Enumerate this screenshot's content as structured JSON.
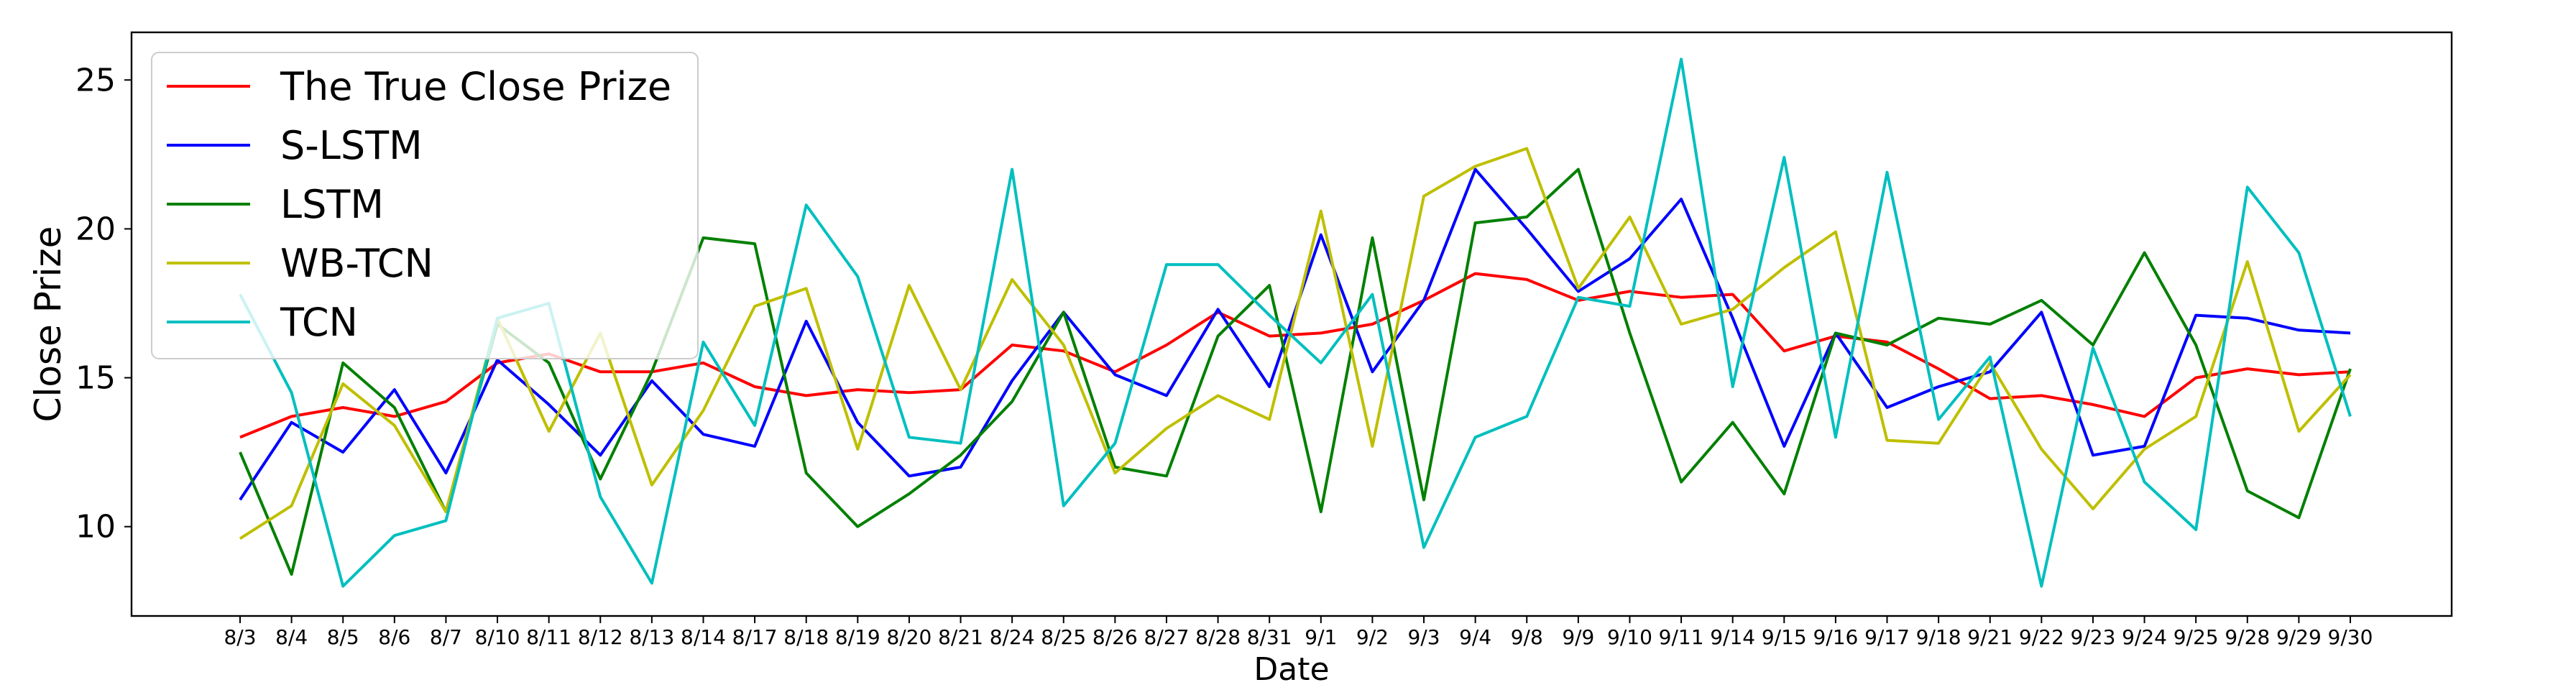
{
  "chart_data": {
    "type": "line",
    "title": "",
    "xlabel": "Date",
    "ylabel": "Close Prize",
    "ylim": [
      7,
      26.6
    ],
    "yticks": [
      10,
      15,
      20,
      25
    ],
    "grid": false,
    "legend_placement": "top-left",
    "categories": [
      "8/3",
      "8/4",
      "8/5",
      "8/6",
      "8/7",
      "8/10",
      "8/11",
      "8/12",
      "8/13",
      "8/14",
      "8/17",
      "8/18",
      "8/19",
      "8/20",
      "8/21",
      "8/24",
      "8/25",
      "8/26",
      "8/27",
      "8/28",
      "8/31",
      "9/1",
      "9/2",
      "9/3",
      "9/4",
      "9/8",
      "9/9",
      "9/10",
      "9/11",
      "9/14",
      "9/15",
      "9/16",
      "9/17",
      "9/18",
      "9/21",
      "9/22",
      "9/23",
      "9/24",
      "9/25",
      "9/28",
      "9/29",
      "9/30"
    ],
    "series": [
      {
        "name": "The True Close Prize",
        "color": "#ff0000",
        "values": [
          13.0,
          13.7,
          14.0,
          13.7,
          14.2,
          15.5,
          15.8,
          15.2,
          15.2,
          15.5,
          14.7,
          14.4,
          14.6,
          14.5,
          14.6,
          16.1,
          15.9,
          15.2,
          16.1,
          17.2,
          16.4,
          16.5,
          16.8,
          17.6,
          18.5,
          18.3,
          17.6,
          17.9,
          17.7,
          17.8,
          15.9,
          16.4,
          16.2,
          15.3,
          14.3,
          14.4,
          14.1,
          13.7,
          15.0,
          15.3,
          15.1,
          15.2
        ]
      },
      {
        "name": "S-LSTM",
        "color": "#0000ff",
        "values": [
          10.9,
          13.5,
          12.5,
          14.6,
          11.8,
          15.6,
          14.1,
          12.4,
          14.9,
          13.1,
          12.7,
          16.9,
          13.5,
          11.7,
          12.0,
          14.9,
          17.2,
          15.1,
          14.4,
          17.3,
          14.7,
          19.8,
          15.2,
          17.6,
          22.0,
          20.0,
          17.9,
          19.0,
          21.0,
          17.0,
          12.7,
          16.5,
          14.0,
          14.7,
          15.2,
          17.2,
          12.4,
          12.7,
          17.1,
          17.0,
          16.6,
          16.5
        ]
      },
      {
        "name": "LSTM",
        "color": "#008000",
        "values": [
          12.5,
          8.4,
          15.5,
          14.0,
          10.5,
          16.8,
          15.5,
          11.6,
          15.2,
          19.7,
          19.5,
          11.8,
          10.0,
          11.1,
          12.4,
          14.2,
          17.2,
          12.0,
          11.7,
          16.4,
          18.1,
          10.5,
          19.7,
          10.9,
          20.2,
          20.4,
          22.0,
          16.5,
          11.5,
          13.5,
          11.1,
          16.5,
          16.1,
          17.0,
          16.8,
          17.6,
          16.1,
          19.2,
          16.1,
          11.2,
          10.3,
          15.3
        ]
      },
      {
        "name": "WB-TCN",
        "color": "#bfbf00",
        "values": [
          9.6,
          10.7,
          14.8,
          13.4,
          10.5,
          17.0,
          13.2,
          16.5,
          11.4,
          13.9,
          17.4,
          18.0,
          12.6,
          18.1,
          14.6,
          18.3,
          16.1,
          11.8,
          13.3,
          14.4,
          13.6,
          20.6,
          12.7,
          21.1,
          22.1,
          22.7,
          18.0,
          20.4,
          16.8,
          17.3,
          18.7,
          19.9,
          12.9,
          12.8,
          15.5,
          12.6,
          10.6,
          12.6,
          13.7,
          18.9,
          13.2,
          15.1
        ]
      },
      {
        "name": "TCN",
        "color": "#00bfbf",
        "values": [
          17.8,
          14.5,
          8.0,
          9.7,
          10.2,
          17.0,
          17.5,
          11.0,
          8.1,
          16.2,
          13.4,
          20.8,
          18.4,
          13.0,
          12.8,
          22.0,
          10.7,
          12.8,
          18.8,
          18.8,
          17.1,
          15.5,
          17.8,
          9.3,
          13.0,
          13.7,
          17.7,
          17.4,
          25.7,
          14.7,
          22.4,
          13.0,
          21.9,
          13.6,
          15.7,
          8.0,
          16.0,
          11.5,
          9.9,
          21.4,
          19.2,
          13.7
        ]
      }
    ]
  }
}
